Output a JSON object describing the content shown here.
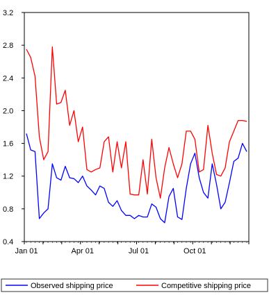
{
  "chart_data": {
    "type": "line",
    "title": "",
    "xlabel": "",
    "ylabel": "",
    "ylim": [
      0.4,
      3.2
    ],
    "y_ticks": [
      0.4,
      0.8,
      1.2,
      1.6,
      2.0,
      2.4,
      2.8,
      3.2
    ],
    "y_tick_labels": [
      "0.4",
      "0.8",
      "1.2",
      "1.6",
      "2.0",
      "2.4",
      "2.8",
      "3.2"
    ],
    "x_tick_labels": [
      "Jan 01",
      "Apr 01",
      "Jul 01",
      "Oct 01"
    ],
    "frequency": "weekly",
    "grid": false,
    "legend_position": "bottom",
    "series": [
      {
        "name": "Observed shipping price",
        "color": "#0000ff",
        "values": [
          1.72,
          1.52,
          1.5,
          0.68,
          0.75,
          0.8,
          1.35,
          1.18,
          1.15,
          1.32,
          1.18,
          1.17,
          1.12,
          1.2,
          1.08,
          1.03,
          0.97,
          1.08,
          1.05,
          0.88,
          0.83,
          0.9,
          0.78,
          0.72,
          0.72,
          0.68,
          0.72,
          0.7,
          0.7,
          0.86,
          0.82,
          0.68,
          0.63,
          0.95,
          1.05,
          0.7,
          0.67,
          1.05,
          1.35,
          1.48,
          1.18,
          1.0,
          0.93,
          1.35,
          1.1,
          0.8,
          0.88,
          1.12,
          1.38,
          1.42,
          1.6,
          1.5
        ]
      },
      {
        "name": "Competitive shipping price",
        "color": "#ff0000",
        "values": [
          2.75,
          2.65,
          2.42,
          1.68,
          1.4,
          1.5,
          2.78,
          2.08,
          2.1,
          2.25,
          1.82,
          2.0,
          1.62,
          1.8,
          1.28,
          1.25,
          1.28,
          1.3,
          1.62,
          1.68,
          1.25,
          1.62,
          1.3,
          1.62,
          0.98,
          0.97,
          0.97,
          1.4,
          0.98,
          1.65,
          1.18,
          0.93,
          1.3,
          1.55,
          1.35,
          1.18,
          1.35,
          1.75,
          1.75,
          1.65,
          1.25,
          1.28,
          1.82,
          1.48,
          1.22,
          1.2,
          1.3,
          1.62,
          1.75,
          1.88,
          1.88,
          1.87
        ]
      }
    ]
  }
}
